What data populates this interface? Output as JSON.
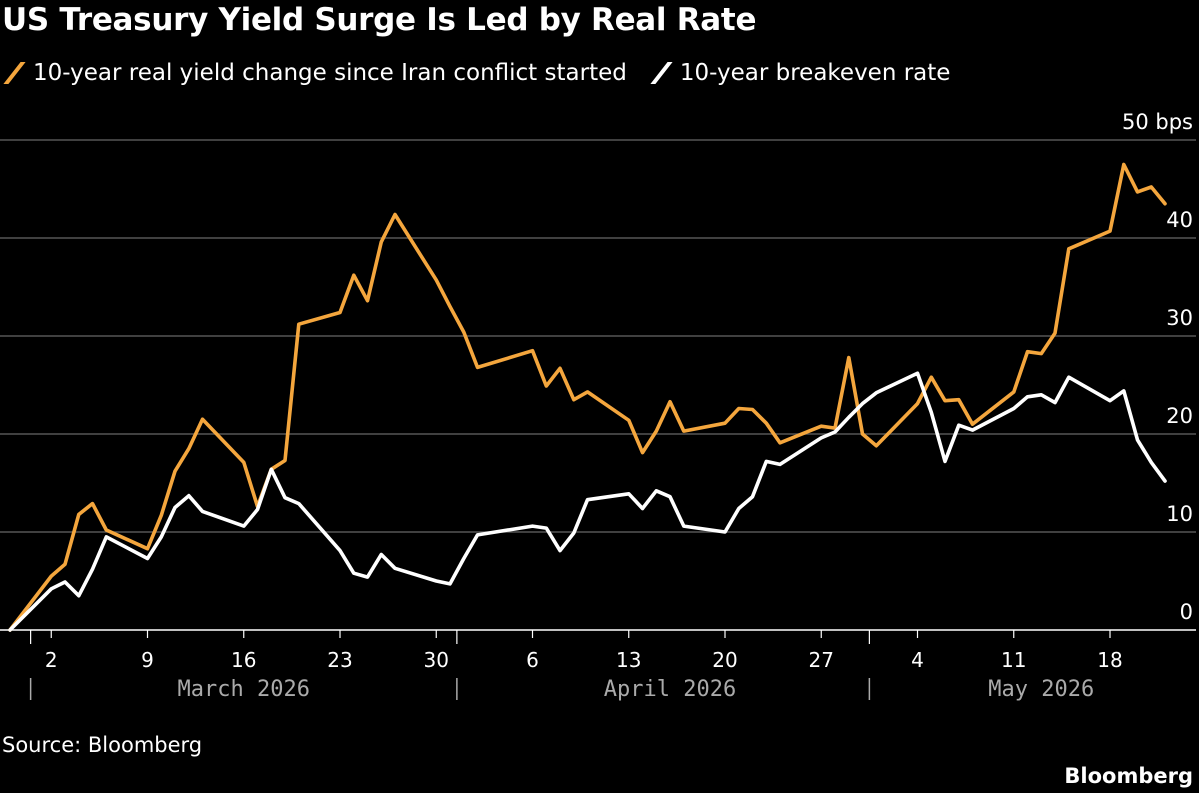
{
  "chart_data": {
    "type": "line",
    "title": "US Treasury Yield Surge Is Led by Real Rate",
    "colors": {
      "real": "#f4a63d",
      "breakeven": "#ffffff",
      "grid": "#555555",
      "axis": "#aaaaaa"
    },
    "ylim": [
      0,
      50
    ],
    "y_unit": "bps",
    "y_ticks": [
      "0",
      "10",
      "20",
      "30",
      "40",
      "50 bps"
    ],
    "xlim": [
      "2026-02-28",
      "2026-05-22"
    ],
    "x_ticks": [
      {
        "date": "2026-03-02",
        "label": "2"
      },
      {
        "date": "2026-03-09",
        "label": "9"
      },
      {
        "date": "2026-03-16",
        "label": "16"
      },
      {
        "date": "2026-03-23",
        "label": "23"
      },
      {
        "date": "2026-03-30",
        "label": "30"
      },
      {
        "date": "2026-04-06",
        "label": "6"
      },
      {
        "date": "2026-04-13",
        "label": "13"
      },
      {
        "date": "2026-04-20",
        "label": "20"
      },
      {
        "date": "2026-04-27",
        "label": "27"
      },
      {
        "date": "2026-05-04",
        "label": "4"
      },
      {
        "date": "2026-05-11",
        "label": "11"
      },
      {
        "date": "2026-05-18",
        "label": "18"
      }
    ],
    "months": [
      {
        "label": "March 2026",
        "center_date": "2026-03-16",
        "separator_date": "2026-03-01"
      },
      {
        "label": "April 2026",
        "center_date": "2026-04-16",
        "separator_date": "2026-04-01"
      },
      {
        "label": "May 2026",
        "center_date": "2026-05-13",
        "separator_date": "2026-05-01"
      }
    ],
    "series": [
      {
        "name": "10-year real yield change since Iran conflict started",
        "key": "real",
        "x": [
          "2026-02-27",
          "2026-03-02",
          "2026-03-03",
          "2026-03-04",
          "2026-03-05",
          "2026-03-06",
          "2026-03-09",
          "2026-03-10",
          "2026-03-11",
          "2026-03-12",
          "2026-03-13",
          "2026-03-16",
          "2026-03-17",
          "2026-03-18",
          "2026-03-19",
          "2026-03-20",
          "2026-03-23",
          "2026-03-24",
          "2026-03-25",
          "2026-03-26",
          "2026-03-27",
          "2026-03-30",
          "2026-03-31",
          "2026-04-01",
          "2026-04-02",
          "2026-04-06",
          "2026-04-07",
          "2026-04-08",
          "2026-04-09",
          "2026-04-10",
          "2026-04-13",
          "2026-04-14",
          "2026-04-15",
          "2026-04-16",
          "2026-04-17",
          "2026-04-20",
          "2026-04-21",
          "2026-04-22",
          "2026-04-23",
          "2026-04-24",
          "2026-04-27",
          "2026-04-28",
          "2026-04-29",
          "2026-04-30",
          "2026-05-01",
          "2026-05-04",
          "2026-05-05",
          "2026-05-06",
          "2026-05-07",
          "2026-05-08",
          "2026-05-11",
          "2026-05-12",
          "2026-05-13",
          "2026-05-14",
          "2026-05-15",
          "2026-05-18",
          "2026-05-19",
          "2026-05-20",
          "2026-05-21",
          "2026-05-22"
        ],
        "values": [
          0,
          5.5,
          6.7,
          11.8,
          12.9,
          10.2,
          8.3,
          11.7,
          16.2,
          18.5,
          21.5,
          17.1,
          12.6,
          16.4,
          17.3,
          31.2,
          32.4,
          36.2,
          33.6,
          39.6,
          42.4,
          35.7,
          33.0,
          30.4,
          26.8,
          28.5,
          24.9,
          26.7,
          23.5,
          24.3,
          21.4,
          18.1,
          20.3,
          23.3,
          20.3,
          21.1,
          22.6,
          22.5,
          21.1,
          19.1,
          20.8,
          20.6,
          27.8,
          20.0,
          18.8,
          23.1,
          25.8,
          23.4,
          23.5,
          21.0,
          24.3,
          28.4,
          28.2,
          30.3,
          38.9,
          40.7,
          47.5,
          44.7,
          45.2,
          43.5
        ]
      },
      {
        "name": "10-year breakeven rate",
        "key": "breakeven",
        "x": [
          "2026-02-27",
          "2026-03-02",
          "2026-03-03",
          "2026-03-04",
          "2026-03-05",
          "2026-03-06",
          "2026-03-09",
          "2026-03-10",
          "2026-03-11",
          "2026-03-12",
          "2026-03-13",
          "2026-03-16",
          "2026-03-17",
          "2026-03-18",
          "2026-03-19",
          "2026-03-20",
          "2026-03-23",
          "2026-03-24",
          "2026-03-25",
          "2026-03-26",
          "2026-03-27",
          "2026-03-30",
          "2026-03-31",
          "2026-04-01",
          "2026-04-02",
          "2026-04-06",
          "2026-04-07",
          "2026-04-08",
          "2026-04-09",
          "2026-04-10",
          "2026-04-13",
          "2026-04-14",
          "2026-04-15",
          "2026-04-16",
          "2026-04-17",
          "2026-04-20",
          "2026-04-21",
          "2026-04-22",
          "2026-04-23",
          "2026-04-24",
          "2026-04-27",
          "2026-04-28",
          "2026-04-29",
          "2026-04-30",
          "2026-05-01",
          "2026-05-04",
          "2026-05-05",
          "2026-05-06",
          "2026-05-07",
          "2026-05-08",
          "2026-05-11",
          "2026-05-12",
          "2026-05-13",
          "2026-05-14",
          "2026-05-15",
          "2026-05-18",
          "2026-05-19",
          "2026-05-20",
          "2026-05-21",
          "2026-05-22"
        ],
        "values": [
          0,
          4.2,
          4.9,
          3.5,
          6.2,
          9.5,
          7.3,
          9.5,
          12.5,
          13.7,
          12.1,
          10.6,
          12.3,
          16.4,
          13.5,
          12.9,
          8.1,
          5.8,
          5.4,
          7.7,
          6.3,
          5.0,
          4.7,
          7.3,
          9.7,
          10.6,
          10.4,
          8.1,
          9.9,
          13.3,
          13.9,
          12.4,
          14.2,
          13.6,
          10.6,
          10.0,
          12.4,
          13.6,
          17.2,
          16.9,
          19.6,
          20.2,
          21.7,
          23.1,
          24.2,
          26.2,
          22.2,
          17.2,
          20.9,
          20.4,
          22.6,
          23.8,
          24.0,
          23.2,
          25.8,
          23.4,
          24.4,
          19.4,
          17.1,
          15.2
        ]
      }
    ],
    "source": "Source: Bloomberg",
    "brand": "Bloomberg"
  }
}
